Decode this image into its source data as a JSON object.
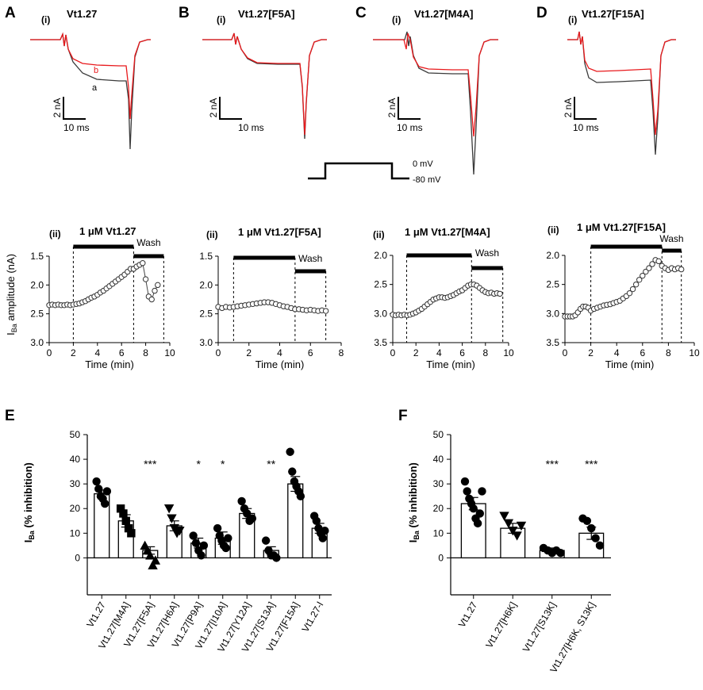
{
  "figure": {
    "panels": {
      "A": {
        "letter": "A",
        "sub": "(i)",
        "title": "Vt1.27",
        "trace_b": "b",
        "trace_a": "a",
        "scale_y": "2 nA",
        "scale_x": "10 ms"
      },
      "B": {
        "letter": "B",
        "sub": "(i)",
        "title": "Vt1.27[F5A]",
        "scale_y": "2 nA",
        "scale_x": "10 ms"
      },
      "C": {
        "letter": "C",
        "sub": "(i)",
        "title": "Vt1.27[M4A]",
        "scale_y": "2 nA",
        "scale_x": "10 ms"
      },
      "D": {
        "letter": "D",
        "sub": "(i)",
        "title": "Vt1.27[F15A]",
        "scale_y": "2 nA",
        "scale_x": "10 ms"
      },
      "E": {
        "letter": "E"
      },
      "F": {
        "letter": "F"
      }
    },
    "protocol": {
      "v_high": "0 mV",
      "v_low": "-80 mV"
    },
    "colors": {
      "control": "#3a3a3a",
      "drug": "#e8191c",
      "marker_fill": "#ffffff"
    }
  },
  "chart_data": [
    {
      "type": "line",
      "id": "Aii",
      "sub": "(ii)",
      "title": "1 μM Vt1.27",
      "wash_label": "Wash",
      "xlabel": "Time (min)",
      "ylabel": "IBa amplitude (nA)",
      "ylabel_main": "I",
      "ylabel_sub": "Ba",
      "ylabel_rest": " amplitude (nA)",
      "xlim": [
        0,
        10
      ],
      "xticks": [
        0,
        2,
        4,
        6,
        8,
        10
      ],
      "ylim": [
        1.5,
        3.0
      ],
      "yticks": [
        1.5,
        2.0,
        2.5,
        3.0
      ],
      "y_inverted": true,
      "drug_period": [
        2,
        7
      ],
      "wash_period": [
        7,
        9.5
      ],
      "series": [
        {
          "name": "IBa amplitude",
          "x": [
            0,
            0.25,
            0.5,
            0.75,
            1,
            1.25,
            1.5,
            1.75,
            2,
            2.25,
            2.5,
            2.75,
            3,
            3.25,
            3.5,
            3.75,
            4,
            4.25,
            4.5,
            4.75,
            5,
            5.25,
            5.5,
            5.75,
            6,
            6.25,
            6.5,
            6.75,
            7,
            7.25,
            7.5,
            7.75,
            8,
            8.25,
            8.5,
            8.75,
            9
          ],
          "y": [
            2.35,
            2.34,
            2.35,
            2.34,
            2.35,
            2.35,
            2.34,
            2.35,
            2.34,
            2.33,
            2.32,
            2.3,
            2.28,
            2.25,
            2.22,
            2.2,
            2.17,
            2.13,
            2.1,
            2.06,
            2.02,
            1.98,
            1.94,
            1.9,
            1.86,
            1.82,
            1.77,
            1.72,
            1.72,
            1.68,
            1.65,
            1.62,
            1.9,
            2.2,
            2.25,
            2.1,
            2.0
          ]
        }
      ]
    },
    {
      "type": "line",
      "id": "Bii",
      "sub": "(ii)",
      "title": "1 μM Vt1.27[F5A]",
      "wash_label": "Wash",
      "xlabel": "Time (min)",
      "ylabel": "",
      "xlim": [
        0,
        8
      ],
      "xticks": [
        0,
        2,
        4,
        6,
        8
      ],
      "ylim": [
        1.5,
        3.0
      ],
      "yticks": [
        1.5,
        2.0,
        2.5,
        3.0
      ],
      "y_inverted": true,
      "drug_period": [
        1,
        5
      ],
      "wash_period": [
        5,
        7
      ],
      "series": [
        {
          "name": "IBa amplitude",
          "x": [
            0,
            0.25,
            0.5,
            0.75,
            1,
            1.25,
            1.5,
            1.75,
            2,
            2.25,
            2.5,
            2.75,
            3,
            3.25,
            3.5,
            3.75,
            4,
            4.25,
            4.5,
            4.75,
            5,
            5.25,
            5.5,
            5.75,
            6,
            6.25,
            6.5,
            6.75,
            7
          ],
          "y": [
            2.38,
            2.4,
            2.38,
            2.39,
            2.38,
            2.37,
            2.36,
            2.35,
            2.34,
            2.33,
            2.32,
            2.31,
            2.3,
            2.3,
            2.31,
            2.33,
            2.35,
            2.37,
            2.38,
            2.4,
            2.42,
            2.42,
            2.43,
            2.44,
            2.43,
            2.44,
            2.45,
            2.44,
            2.45
          ]
        }
      ]
    },
    {
      "type": "line",
      "id": "Cii",
      "sub": "(ii)",
      "title": "1 μM Vt1.27[M4A]",
      "wash_label": "Wash",
      "xlabel": "Time (min)",
      "ylabel": "",
      "xlim": [
        0,
        10
      ],
      "xticks": [
        0,
        2,
        4,
        6,
        8,
        10
      ],
      "ylim": [
        2.0,
        3.5
      ],
      "yticks": [
        2.0,
        2.5,
        3.0,
        3.5
      ],
      "y_inverted": true,
      "drug_period": [
        1.2,
        6.8
      ],
      "wash_period": [
        6.8,
        9.5
      ],
      "series": [
        {
          "name": "IBa amplitude",
          "x": [
            0,
            0.25,
            0.5,
            0.75,
            1,
            1.25,
            1.5,
            1.75,
            2,
            2.25,
            2.5,
            2.75,
            3,
            3.25,
            3.5,
            3.75,
            4,
            4.25,
            4.5,
            4.75,
            5,
            5.25,
            5.5,
            5.75,
            6,
            6.25,
            6.5,
            6.75,
            7,
            7.25,
            7.5,
            7.75,
            8,
            8.25,
            8.5,
            8.75,
            9,
            9.25
          ],
          "y": [
            3.02,
            3.03,
            3.02,
            3.03,
            3.02,
            3.03,
            3.02,
            3.0,
            2.98,
            2.95,
            2.92,
            2.88,
            2.84,
            2.8,
            2.76,
            2.74,
            2.72,
            2.72,
            2.73,
            2.72,
            2.7,
            2.68,
            2.65,
            2.62,
            2.6,
            2.56,
            2.52,
            2.5,
            2.5,
            2.52,
            2.56,
            2.6,
            2.63,
            2.65,
            2.64,
            2.66,
            2.65,
            2.66
          ]
        }
      ]
    },
    {
      "type": "line",
      "id": "Dii",
      "sub": "(ii)",
      "title": "1 μM Vt1.27[F15A]",
      "wash_label": "Wash",
      "xlabel": "Time (min)",
      "ylabel": "",
      "xlim": [
        0,
        10
      ],
      "xticks": [
        0,
        2,
        4,
        6,
        8,
        10
      ],
      "ylim": [
        2.0,
        3.5
      ],
      "yticks": [
        2.0,
        2.5,
        3.0,
        3.5
      ],
      "y_inverted": true,
      "drug_period": [
        2,
        7.5
      ],
      "wash_period": [
        7.5,
        9
      ],
      "series": [
        {
          "name": "IBa amplitude",
          "x": [
            0,
            0.2,
            0.4,
            0.6,
            0.8,
            1,
            1.2,
            1.4,
            1.6,
            1.8,
            2,
            2.25,
            2.5,
            2.75,
            3,
            3.25,
            3.5,
            3.75,
            4,
            4.25,
            4.5,
            4.75,
            5,
            5.25,
            5.5,
            5.75,
            6,
            6.25,
            6.5,
            6.75,
            7,
            7.25,
            7.5,
            7.75,
            8,
            8.25,
            8.5,
            8.75,
            9
          ],
          "y": [
            3.05,
            3.05,
            3.05,
            3.05,
            3.03,
            2.98,
            2.92,
            2.88,
            2.88,
            2.9,
            2.95,
            2.92,
            2.9,
            2.88,
            2.86,
            2.85,
            2.84,
            2.82,
            2.8,
            2.78,
            2.74,
            2.7,
            2.65,
            2.58,
            2.5,
            2.42,
            2.35,
            2.28,
            2.22,
            2.15,
            2.08,
            2.1,
            2.18,
            2.22,
            2.25,
            2.22,
            2.24,
            2.22,
            2.24
          ]
        }
      ]
    },
    {
      "type": "bar",
      "id": "E",
      "ylabel": "IBa (% inhibition)",
      "ylabel_main": "I",
      "ylabel_sub": "Ba",
      "ylabel_rest": " (% inhibition)",
      "ylim": [
        -15,
        50
      ],
      "yticks": [
        0,
        10,
        20,
        30,
        40,
        50
      ],
      "ytick_labels": [
        "0",
        "10",
        "20",
        "30",
        "40",
        "50"
      ],
      "categories": [
        "Vt1.27",
        "Vt1.27[M4A]",
        "Vt1.27[F5A]",
        "Vt1.27[H6A]",
        "Vt1.27[P9A]",
        "Vt1.27[I10A]",
        "Vt1.27[Y12A]",
        "Vt1.27[S13A]",
        "Vt1.27[F15A]",
        "Vt1.27-l"
      ],
      "values": [
        26,
        15,
        3,
        13,
        6,
        8,
        18,
        3,
        30,
        12
      ],
      "errors": [
        1.5,
        2.5,
        1.5,
        2.0,
        2.0,
        2.5,
        2.0,
        1.5,
        3.0,
        2.0
      ],
      "markers": [
        "circle",
        "square",
        "triangle-up",
        "triangle-down",
        "circle",
        "circle",
        "circle",
        "circle",
        "circle",
        "circle"
      ],
      "points": [
        [
          31,
          28,
          25,
          24,
          22,
          27
        ],
        [
          20,
          18,
          15,
          12,
          10
        ],
        [
          5,
          3,
          1,
          -3,
          -1
        ],
        [
          20,
          16,
          12,
          10,
          11
        ],
        [
          9,
          6,
          3,
          1,
          5
        ],
        [
          12,
          9,
          7,
          5,
          4,
          8
        ],
        [
          23,
          20,
          18,
          15,
          16
        ],
        [
          7,
          3,
          1,
          1,
          0
        ],
        [
          43,
          35,
          31,
          29,
          27,
          25
        ],
        [
          17,
          15,
          12,
          10,
          8,
          11
        ]
      ],
      "significance": [
        "",
        "",
        "***",
        "",
        "*",
        "*",
        "",
        "**",
        "",
        ""
      ]
    },
    {
      "type": "bar",
      "id": "F",
      "ylabel": "IBa (% inhibition)",
      "ylabel_main": "I",
      "ylabel_sub": "Ba",
      "ylabel_rest": " (% inhibition)",
      "ylim": [
        -15,
        50
      ],
      "yticks": [
        0,
        10,
        20,
        30,
        40,
        50
      ],
      "ytick_labels": [
        "0",
        "10",
        "20",
        "30",
        "40",
        "50"
      ],
      "categories": [
        "Vt1.27",
        "Vt1.27[H6K]",
        "Vt1.27[S13K]",
        "Vt1.27[H6K, S13K]"
      ],
      "values": [
        22,
        12,
        3,
        10
      ],
      "errors": [
        2.5,
        2.0,
        1.0,
        2.5
      ],
      "markers": [
        "circle",
        "triangle-down",
        "circle",
        "circle"
      ],
      "points": [
        [
          31,
          27,
          24,
          22,
          20,
          16,
          14,
          18,
          27
        ],
        [
          17,
          14,
          11,
          9,
          13
        ],
        [
          4,
          3,
          2,
          3,
          2
        ],
        [
          16,
          15,
          12,
          8,
          5
        ]
      ],
      "significance": [
        "",
        "",
        "***",
        "***"
      ]
    }
  ]
}
